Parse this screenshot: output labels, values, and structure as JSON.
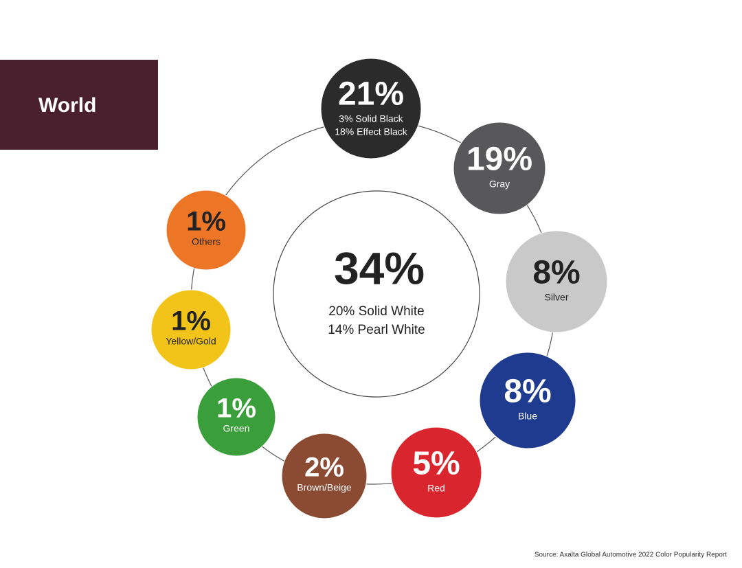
{
  "header": {
    "title": "World"
  },
  "center": {
    "value": "34%",
    "lines": [
      "20% Solid White",
      "14% Pearl White"
    ]
  },
  "nodes": [
    {
      "value": "21%",
      "lines": [
        "3% Solid Black",
        "18% Effect Black"
      ]
    },
    {
      "value": "19%",
      "lines": [
        "Gray"
      ]
    },
    {
      "value": "8%",
      "lines": [
        "Silver"
      ]
    },
    {
      "value": "8%",
      "lines": [
        "Blue"
      ]
    },
    {
      "value": "5%",
      "lines": [
        "Red"
      ]
    },
    {
      "value": "2%",
      "lines": [
        "Brown/Beige"
      ]
    },
    {
      "value": "1%",
      "lines": [
        "Green"
      ]
    },
    {
      "value": "1%",
      "lines": [
        "Yellow/Gold"
      ]
    },
    {
      "value": "1%",
      "lines": [
        "Others"
      ]
    }
  ],
  "source": "Source: Axalta Global Automotive 2022 Color Popularity Report"
}
